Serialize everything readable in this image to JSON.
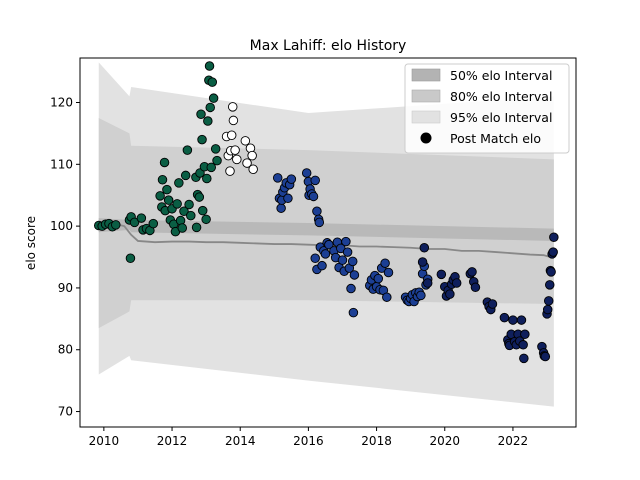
{
  "chart_data": {
    "type": "scatter",
    "title": "Max Lahiff: elo History",
    "xlabel": "",
    "ylabel": "elo score",
    "xlim": [
      2009.3,
      2023.85
    ],
    "ylim": [
      67.5,
      127.2
    ],
    "xticks": [
      "2010",
      "2012",
      "2014",
      "2016",
      "2018",
      "2020",
      "2022"
    ],
    "yticks": [
      "70",
      "80",
      "90",
      "100",
      "110",
      "120"
    ],
    "grid": false,
    "legend_position": "top-right",
    "legend": [
      {
        "label": "50% elo Interval",
        "color": "#b3b3b3"
      },
      {
        "label": "80% elo Interval",
        "color": "#c9c9c9"
      },
      {
        "label": "95% elo Interval",
        "color": "#e2e2e2"
      },
      {
        "label": "Post Match elo",
        "color": "#000000"
      }
    ],
    "mean_line": {
      "color": "#888888",
      "x": [
        2009.85,
        2010.0,
        2010.3,
        2010.6,
        2010.8,
        2011.0,
        2011.5,
        2012.0,
        2012.5,
        2013.0,
        2013.5,
        2014.0,
        2014.5,
        2015.0,
        2015.5,
        2016.0,
        2016.5,
        2017.0,
        2017.5,
        2018.0,
        2018.5,
        2019.0,
        2019.5,
        2020.0,
        2020.5,
        2021.0,
        2021.5,
        2022.0,
        2022.5,
        2022.9,
        2023.1
      ],
      "y": [
        100.2,
        100.6,
        100.4,
        100.0,
        98.6,
        97.6,
        97.4,
        97.5,
        97.5,
        97.4,
        97.4,
        97.3,
        97.2,
        97.1,
        97.1,
        97.0,
        96.9,
        96.9,
        96.7,
        96.7,
        96.6,
        96.5,
        96.3,
        96.3,
        96.0,
        96.0,
        95.8,
        95.6,
        95.4,
        95.3,
        95.0
      ]
    },
    "intervals": {
      "x": [
        2009.85,
        2010.75,
        2010.8,
        2016.0,
        2023.2
      ],
      "q50_lo": [
        99.0,
        99.4,
        99.0,
        98.5,
        97.6
      ],
      "q50_hi": [
        101.3,
        101.0,
        101.0,
        100.5,
        99.6
      ],
      "q80_lo": [
        83.5,
        86.2,
        88.0,
        88.0,
        87.4
      ],
      "q80_hi": [
        117.5,
        115.0,
        113.0,
        112.3,
        110.8
      ],
      "q95_lo": [
        76.0,
        79.0,
        78.3,
        75.0,
        70.8
      ],
      "q95_hi": [
        126.5,
        121.0,
        122.5,
        118.3,
        121.0
      ]
    },
    "series": [
      {
        "color": "#0a5e44",
        "points": [
          [
            2009.85,
            100.1
          ],
          [
            2009.95,
            100.0
          ],
          [
            2010.05,
            100.3
          ],
          [
            2010.15,
            100.4
          ],
          [
            2010.25,
            99.9
          ],
          [
            2010.35,
            100.2
          ],
          [
            2010.75,
            101.0
          ],
          [
            2010.8,
            101.5
          ],
          [
            2010.78,
            94.8
          ],
          [
            2010.9,
            100.6
          ],
          [
            2011.1,
            101.3
          ],
          [
            2011.15,
            99.4
          ],
          [
            2011.25,
            99.6
          ],
          [
            2011.35,
            99.3
          ],
          [
            2011.45,
            100.4
          ],
          [
            2011.65,
            104.9
          ],
          [
            2011.7,
            103.1
          ],
          [
            2011.72,
            107.5
          ],
          [
            2011.78,
            110.3
          ],
          [
            2011.8,
            102.5
          ],
          [
            2011.85,
            105.9
          ],
          [
            2011.9,
            104.2
          ],
          [
            2011.95,
            101.0
          ],
          [
            2012.0,
            102.8
          ],
          [
            2012.05,
            100.3
          ],
          [
            2012.1,
            99.1
          ],
          [
            2012.15,
            103.6
          ],
          [
            2012.2,
            107.0
          ],
          [
            2012.25,
            100.9
          ],
          [
            2012.3,
            99.7
          ],
          [
            2012.35,
            102.4
          ],
          [
            2012.4,
            108.2
          ],
          [
            2012.45,
            112.3
          ],
          [
            2012.5,
            103.5
          ],
          [
            2012.55,
            101.7
          ],
          [
            2012.7,
            107.9
          ],
          [
            2012.72,
            99.8
          ],
          [
            2012.75,
            105.1
          ],
          [
            2012.8,
            104.7
          ],
          [
            2012.82,
            108.6
          ],
          [
            2012.85,
            118.1
          ],
          [
            2012.88,
            114.0
          ],
          [
            2012.9,
            102.5
          ],
          [
            2012.95,
            109.6
          ],
          [
            2013.0,
            101.1
          ],
          [
            2013.02,
            107.7
          ],
          [
            2013.05,
            117.0
          ],
          [
            2013.08,
            123.6
          ],
          [
            2013.1,
            125.9
          ],
          [
            2013.12,
            119.2
          ],
          [
            2013.15,
            109.5
          ],
          [
            2013.18,
            123.3
          ],
          [
            2013.22,
            120.7
          ],
          [
            2013.28,
            112.5
          ],
          [
            2013.32,
            110.6
          ]
        ]
      },
      {
        "color": "#ffffff",
        "points": [
          [
            2013.6,
            114.5
          ],
          [
            2013.65,
            111.4
          ],
          [
            2013.7,
            108.9
          ],
          [
            2013.72,
            112.2
          ],
          [
            2013.75,
            114.7
          ],
          [
            2013.78,
            119.3
          ],
          [
            2013.8,
            117.1
          ],
          [
            2013.85,
            112.3
          ],
          [
            2013.9,
            110.8
          ],
          [
            2014.15,
            113.8
          ],
          [
            2014.2,
            110.2
          ],
          [
            2014.3,
            112.6
          ],
          [
            2014.35,
            111.4
          ],
          [
            2014.38,
            109.2
          ]
        ]
      },
      {
        "color": "#1c3f94",
        "points": [
          [
            2015.1,
            107.8
          ],
          [
            2015.15,
            104.5
          ],
          [
            2015.2,
            102.9
          ],
          [
            2015.22,
            104.2
          ],
          [
            2015.25,
            105.5
          ],
          [
            2015.3,
            106.2
          ],
          [
            2015.35,
            107.0
          ],
          [
            2015.4,
            104.5
          ],
          [
            2015.45,
            106.7
          ],
          [
            2015.5,
            107.6
          ],
          [
            2015.95,
            108.6
          ],
          [
            2016.0,
            107.2
          ],
          [
            2016.02,
            105.0
          ],
          [
            2016.05,
            106.0
          ],
          [
            2016.1,
            105.2
          ],
          [
            2016.15,
            104.8
          ],
          [
            2016.2,
            107.4
          ],
          [
            2016.25,
            102.4
          ],
          [
            2016.3,
            101.1
          ],
          [
            2016.32,
            100.6
          ],
          [
            2016.2,
            94.8
          ],
          [
            2016.25,
            93.0
          ],
          [
            2016.35,
            96.6
          ],
          [
            2016.4,
            93.6
          ],
          [
            2016.45,
            96.0
          ],
          [
            2016.5,
            95.5
          ],
          [
            2016.55,
            97.3
          ],
          [
            2016.6,
            97.0
          ],
          [
            2016.75,
            96.0
          ],
          [
            2016.8,
            94.9
          ],
          [
            2016.85,
            97.4
          ],
          [
            2016.9,
            93.3
          ],
          [
            2016.95,
            96.4
          ],
          [
            2017.0,
            94.5
          ],
          [
            2017.05,
            92.7
          ],
          [
            2017.1,
            97.5
          ],
          [
            2017.15,
            95.8
          ],
          [
            2017.2,
            93.2
          ],
          [
            2017.25,
            89.9
          ],
          [
            2017.3,
            94.3
          ],
          [
            2017.35,
            92.1
          ],
          [
            2017.32,
            86.0
          ],
          [
            2017.8,
            90.4
          ],
          [
            2017.85,
            91.3
          ],
          [
            2017.9,
            89.8
          ],
          [
            2017.95,
            92.0
          ],
          [
            2018.0,
            90.2
          ],
          [
            2018.05,
            91.5
          ],
          [
            2018.1,
            89.7
          ],
          [
            2018.15,
            93.2
          ],
          [
            2018.2,
            89.6
          ],
          [
            2018.25,
            94.0
          ],
          [
            2018.3,
            88.5
          ],
          [
            2018.35,
            92.5
          ],
          [
            2018.85,
            88.5
          ],
          [
            2018.9,
            88.0
          ],
          [
            2018.95,
            87.8
          ],
          [
            2019.0,
            88.3
          ],
          [
            2019.05,
            88.9
          ],
          [
            2019.1,
            87.8
          ],
          [
            2019.15,
            89.2
          ],
          [
            2019.2,
            88.6
          ],
          [
            2019.25,
            89.3
          ],
          [
            2019.3,
            88.8
          ],
          [
            2019.35,
            92.3
          ],
          [
            2019.4,
            93.5
          ],
          [
            2019.45,
            90.5
          ],
          [
            2019.5,
            91.4
          ]
        ]
      },
      {
        "color": "#0f1f5c",
        "points": [
          [
            2019.35,
            94.2
          ],
          [
            2019.4,
            96.5
          ],
          [
            2019.5,
            90.8
          ],
          [
            2019.9,
            92.2
          ],
          [
            2020.0,
            90.2
          ],
          [
            2020.05,
            88.7
          ],
          [
            2020.1,
            89.6
          ],
          [
            2020.15,
            89.0
          ],
          [
            2020.2,
            90.6
          ],
          [
            2020.25,
            91.3
          ],
          [
            2020.3,
            91.8
          ],
          [
            2020.35,
            90.8
          ],
          [
            2020.75,
            92.3
          ],
          [
            2020.8,
            92.6
          ],
          [
            2020.85,
            91.0
          ],
          [
            2020.9,
            90.1
          ],
          [
            2021.25,
            87.7
          ],
          [
            2021.3,
            87.0
          ],
          [
            2021.35,
            86.5
          ],
          [
            2021.4,
            87.4
          ],
          [
            2021.75,
            85.2
          ],
          [
            2021.85,
            81.6
          ],
          [
            2021.88,
            81.0
          ],
          [
            2021.9,
            80.7
          ],
          [
            2021.95,
            82.5
          ],
          [
            2022.0,
            84.8
          ],
          [
            2022.05,
            81.3
          ],
          [
            2022.1,
            80.8
          ],
          [
            2022.15,
            82.5
          ],
          [
            2022.2,
            81.4
          ],
          [
            2022.25,
            84.8
          ],
          [
            2022.3,
            80.8
          ],
          [
            2022.32,
            78.6
          ],
          [
            2022.35,
            82.5
          ],
          [
            2022.85,
            80.5
          ],
          [
            2022.9,
            79.5
          ],
          [
            2022.92,
            79.0
          ],
          [
            2022.95,
            78.9
          ],
          [
            2023.0,
            85.8
          ],
          [
            2023.02,
            86.5
          ],
          [
            2023.05,
            87.9
          ],
          [
            2023.08,
            90.5
          ],
          [
            2023.1,
            92.8
          ],
          [
            2023.12,
            92.6
          ],
          [
            2023.15,
            95.5
          ],
          [
            2023.18,
            95.8
          ],
          [
            2023.2,
            98.2
          ]
        ]
      }
    ]
  }
}
